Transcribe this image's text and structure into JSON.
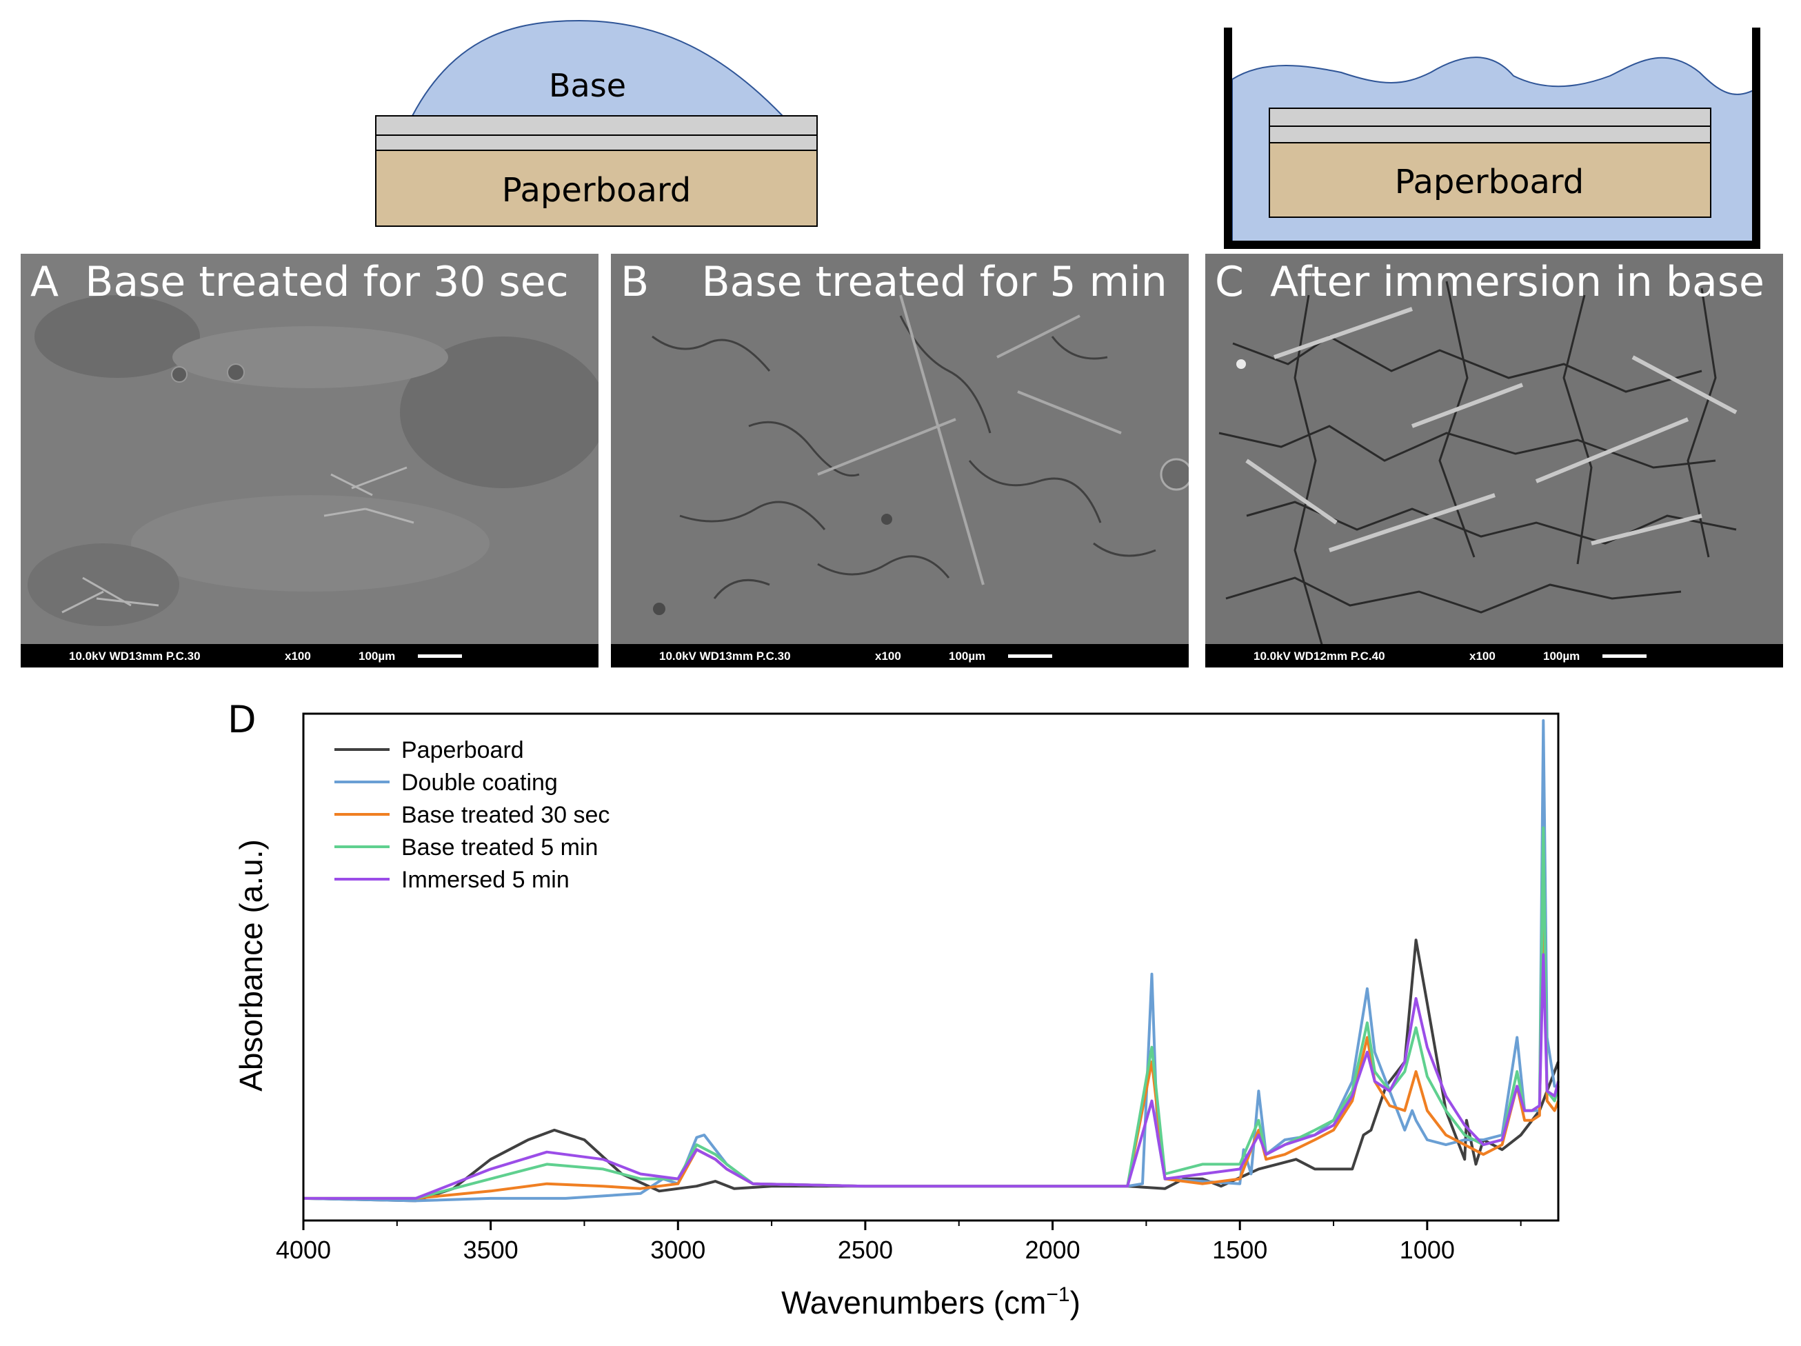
{
  "schematic_left": {
    "drop_label": "Base",
    "substrate_label": "Paperboard",
    "colors": {
      "liquid": "#b4c8e8",
      "coating": "#d0d0d0",
      "paperboard": "#d6c09b"
    }
  },
  "schematic_right": {
    "substrate_label": "Paperboard"
  },
  "panels": [
    {
      "letter": "A",
      "title": "Base treated for 30 sec",
      "voltage": "10.0kV WD13mm P.C.30",
      "magnification": "x100",
      "scale": "100µm"
    },
    {
      "letter": "B",
      "title": "Base treated for 5 min",
      "voltage": "10.0kV WD13mm P.C.30",
      "magnification": "x100",
      "scale": "100µm"
    },
    {
      "letter": "C",
      "title": "After immersion in base",
      "voltage": "10.0kV WD12mm P.C.40",
      "magnification": "x100",
      "scale": "100µm"
    }
  ],
  "chart_panel_letter": "D",
  "chart_data": {
    "type": "line",
    "xlabel": "Wavenumbers (cm",
    "xlabel_sup": "−1",
    "xlabel_end": ")",
    "ylabel": "Absorbance (a.u.)",
    "xlim": [
      4000,
      650
    ],
    "ylim": [
      0,
      1
    ],
    "x_ticks": [
      4000,
      3500,
      3000,
      2500,
      2000,
      1500,
      1000
    ],
    "legend_position": "top-left",
    "series": [
      {
        "name": "Paperboard",
        "color": "#404040",
        "points": [
          [
            4000,
            0.02
          ],
          [
            3700,
            0.015
          ],
          [
            3600,
            0.04
          ],
          [
            3500,
            0.1
          ],
          [
            3400,
            0.14
          ],
          [
            3330,
            0.16
          ],
          [
            3250,
            0.14
          ],
          [
            3150,
            0.07
          ],
          [
            3050,
            0.035
          ],
          [
            2950,
            0.045
          ],
          [
            2900,
            0.055
          ],
          [
            2850,
            0.04
          ],
          [
            2750,
            0.045
          ],
          [
            2500,
            0.045
          ],
          [
            2000,
            0.045
          ],
          [
            1800,
            0.045
          ],
          [
            1700,
            0.04
          ],
          [
            1650,
            0.06
          ],
          [
            1600,
            0.06
          ],
          [
            1550,
            0.045
          ],
          [
            1450,
            0.08
          ],
          [
            1400,
            0.09
          ],
          [
            1350,
            0.1
          ],
          [
            1300,
            0.08
          ],
          [
            1250,
            0.08
          ],
          [
            1200,
            0.08
          ],
          [
            1170,
            0.15
          ],
          [
            1150,
            0.16
          ],
          [
            1110,
            0.25
          ],
          [
            1060,
            0.3
          ],
          [
            1030,
            0.55
          ],
          [
            1000,
            0.42
          ],
          [
            950,
            0.2
          ],
          [
            900,
            0.1
          ],
          [
            895,
            0.18
          ],
          [
            870,
            0.09
          ],
          [
            850,
            0.14
          ],
          [
            800,
            0.12
          ],
          [
            750,
            0.15
          ],
          [
            700,
            0.2
          ],
          [
            650,
            0.3
          ]
        ]
      },
      {
        "name": "Double coating",
        "color": "#6a9fd4",
        "points": [
          [
            4000,
            0.02
          ],
          [
            3700,
            0.015
          ],
          [
            3500,
            0.02
          ],
          [
            3300,
            0.02
          ],
          [
            3100,
            0.03
          ],
          [
            3040,
            0.06
          ],
          [
            3000,
            0.05
          ],
          [
            2950,
            0.145
          ],
          [
            2930,
            0.15
          ],
          [
            2900,
            0.12
          ],
          [
            2870,
            0.09
          ],
          [
            2800,
            0.05
          ],
          [
            2500,
            0.045
          ],
          [
            2000,
            0.045
          ],
          [
            1800,
            0.045
          ],
          [
            1760,
            0.05
          ],
          [
            1735,
            0.48
          ],
          [
            1720,
            0.15
          ],
          [
            1700,
            0.06
          ],
          [
            1500,
            0.05
          ],
          [
            1490,
            0.12
          ],
          [
            1470,
            0.07
          ],
          [
            1450,
            0.24
          ],
          [
            1430,
            0.11
          ],
          [
            1380,
            0.14
          ],
          [
            1300,
            0.15
          ],
          [
            1250,
            0.18
          ],
          [
            1200,
            0.26
          ],
          [
            1160,
            0.45
          ],
          [
            1140,
            0.32
          ],
          [
            1100,
            0.24
          ],
          [
            1060,
            0.16
          ],
          [
            1040,
            0.2
          ],
          [
            1030,
            0.18
          ],
          [
            1000,
            0.14
          ],
          [
            950,
            0.13
          ],
          [
            900,
            0.14
          ],
          [
            850,
            0.14
          ],
          [
            800,
            0.15
          ],
          [
            760,
            0.35
          ],
          [
            740,
            0.2
          ],
          [
            720,
            0.2
          ],
          [
            700,
            0.2
          ],
          [
            690,
            1.0
          ],
          [
            680,
            0.35
          ],
          [
            660,
            0.25
          ],
          [
            650,
            0.25
          ]
        ]
      },
      {
        "name": "Base treated 30 sec",
        "color": "#f07f22",
        "points": [
          [
            4000,
            0.02
          ],
          [
            3700,
            0.02
          ],
          [
            3500,
            0.035
          ],
          [
            3350,
            0.05
          ],
          [
            3200,
            0.045
          ],
          [
            3100,
            0.04
          ],
          [
            3000,
            0.05
          ],
          [
            2950,
            0.12
          ],
          [
            2900,
            0.1
          ],
          [
            2870,
            0.08
          ],
          [
            2800,
            0.05
          ],
          [
            2500,
            0.045
          ],
          [
            2000,
            0.045
          ],
          [
            1800,
            0.045
          ],
          [
            1735,
            0.3
          ],
          [
            1700,
            0.06
          ],
          [
            1600,
            0.05
          ],
          [
            1500,
            0.06
          ],
          [
            1450,
            0.16
          ],
          [
            1430,
            0.1
          ],
          [
            1380,
            0.11
          ],
          [
            1300,
            0.14
          ],
          [
            1250,
            0.16
          ],
          [
            1200,
            0.22
          ],
          [
            1160,
            0.35
          ],
          [
            1140,
            0.26
          ],
          [
            1100,
            0.21
          ],
          [
            1060,
            0.2
          ],
          [
            1030,
            0.28
          ],
          [
            1000,
            0.2
          ],
          [
            950,
            0.15
          ],
          [
            900,
            0.13
          ],
          [
            850,
            0.11
          ],
          [
            800,
            0.13
          ],
          [
            760,
            0.25
          ],
          [
            740,
            0.18
          ],
          [
            720,
            0.18
          ],
          [
            700,
            0.19
          ],
          [
            690,
            0.68
          ],
          [
            680,
            0.22
          ],
          [
            660,
            0.2
          ],
          [
            650,
            0.22
          ]
        ]
      },
      {
        "name": "Base treated 5 min",
        "color": "#5fd08f",
        "points": [
          [
            4000,
            0.02
          ],
          [
            3700,
            0.02
          ],
          [
            3500,
            0.06
          ],
          [
            3350,
            0.09
          ],
          [
            3200,
            0.08
          ],
          [
            3100,
            0.06
          ],
          [
            3000,
            0.06
          ],
          [
            2950,
            0.13
          ],
          [
            2900,
            0.11
          ],
          [
            2870,
            0.09
          ],
          [
            2800,
            0.05
          ],
          [
            2500,
            0.045
          ],
          [
            2000,
            0.045
          ],
          [
            1800,
            0.045
          ],
          [
            1735,
            0.33
          ],
          [
            1700,
            0.07
          ],
          [
            1600,
            0.09
          ],
          [
            1500,
            0.09
          ],
          [
            1450,
            0.18
          ],
          [
            1430,
            0.11
          ],
          [
            1380,
            0.13
          ],
          [
            1300,
            0.16
          ],
          [
            1250,
            0.18
          ],
          [
            1200,
            0.24
          ],
          [
            1160,
            0.38
          ],
          [
            1140,
            0.28
          ],
          [
            1100,
            0.24
          ],
          [
            1060,
            0.28
          ],
          [
            1030,
            0.37
          ],
          [
            1000,
            0.27
          ],
          [
            950,
            0.2
          ],
          [
            900,
            0.15
          ],
          [
            850,
            0.13
          ],
          [
            800,
            0.14
          ],
          [
            760,
            0.28
          ],
          [
            740,
            0.2
          ],
          [
            720,
            0.2
          ],
          [
            700,
            0.21
          ],
          [
            690,
            0.78
          ],
          [
            680,
            0.24
          ],
          [
            660,
            0.22
          ],
          [
            650,
            0.25
          ]
        ]
      },
      {
        "name": "Immersed 5 min",
        "color": "#9b4de8",
        "points": [
          [
            4000,
            0.02
          ],
          [
            3700,
            0.02
          ],
          [
            3500,
            0.08
          ],
          [
            3350,
            0.115
          ],
          [
            3200,
            0.1
          ],
          [
            3100,
            0.07
          ],
          [
            3000,
            0.06
          ],
          [
            2950,
            0.12
          ],
          [
            2900,
            0.1
          ],
          [
            2870,
            0.08
          ],
          [
            2800,
            0.05
          ],
          [
            2500,
            0.045
          ],
          [
            2000,
            0.045
          ],
          [
            1800,
            0.045
          ],
          [
            1735,
            0.22
          ],
          [
            1700,
            0.06
          ],
          [
            1600,
            0.07
          ],
          [
            1500,
            0.08
          ],
          [
            1450,
            0.15
          ],
          [
            1430,
            0.11
          ],
          [
            1380,
            0.13
          ],
          [
            1300,
            0.15
          ],
          [
            1250,
            0.17
          ],
          [
            1200,
            0.23
          ],
          [
            1160,
            0.32
          ],
          [
            1140,
            0.26
          ],
          [
            1100,
            0.24
          ],
          [
            1060,
            0.3
          ],
          [
            1030,
            0.43
          ],
          [
            1000,
            0.33
          ],
          [
            950,
            0.23
          ],
          [
            900,
            0.17
          ],
          [
            850,
            0.13
          ],
          [
            800,
            0.14
          ],
          [
            760,
            0.25
          ],
          [
            740,
            0.2
          ],
          [
            720,
            0.2
          ],
          [
            700,
            0.21
          ],
          [
            690,
            0.52
          ],
          [
            680,
            0.24
          ],
          [
            660,
            0.23
          ],
          [
            650,
            0.26
          ]
        ]
      }
    ]
  }
}
